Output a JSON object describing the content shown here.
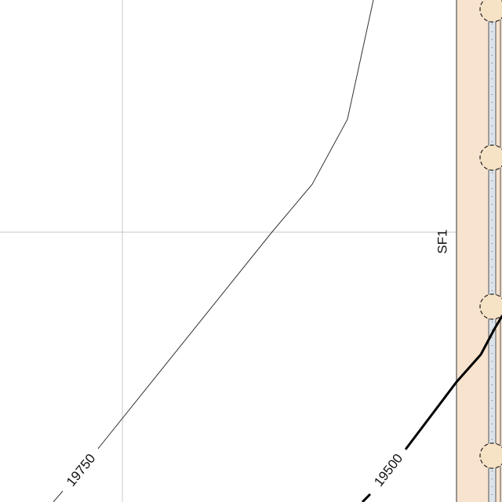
{
  "map": {
    "contours": [
      {
        "elevation": "19750",
        "weight": "thin"
      },
      {
        "elevation": "19500",
        "weight": "bold"
      }
    ],
    "structure_label": "SF1",
    "colors": {
      "background": "#ffffff",
      "grid": "#c8c8c8",
      "contour_thin": "#333333",
      "contour_bold": "#000000",
      "strip_fill": "#f8e3cf",
      "strip_edge": "#555555",
      "pile_fill": "#f6e2c4",
      "dotted_band": "#dde3ea"
    }
  }
}
